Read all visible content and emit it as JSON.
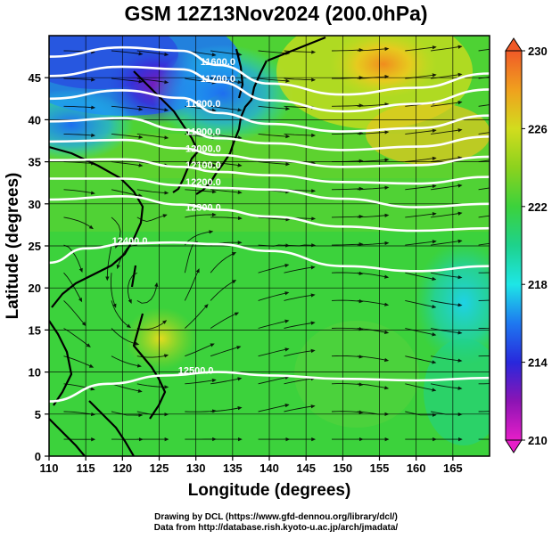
{
  "title": "GSM 12Z13Nov2024 (200.0hPa)",
  "chart_data": {
    "type": "heatmap",
    "xlabel": "Longitude (degrees)",
    "ylabel": "Latitude  (degrees)",
    "xlim": [
      110,
      170
    ],
    "ylim": [
      0,
      50
    ],
    "xticks": [
      110,
      115,
      120,
      125,
      130,
      135,
      140,
      145,
      150,
      155,
      160,
      165
    ],
    "yticks": [
      0,
      5,
      10,
      15,
      20,
      25,
      30,
      35,
      40,
      45
    ],
    "colorbar": {
      "min": 210,
      "max": 230,
      "ticks": [
        210,
        214,
        218,
        222,
        226,
        230
      ],
      "colors": [
        "#e61ec8",
        "#8c14b4",
        "#2828dc",
        "#1e78f0",
        "#1ee6e6",
        "#1ed28c",
        "#3cd23c",
        "#8cd21e",
        "#d2dc1e",
        "#f0a01e",
        "#f05a28"
      ]
    },
    "contours": [
      {
        "label": "11600.0",
        "label_lon": 133,
        "label_lat": 46.5,
        "points": [
          [
            110,
            47.5
          ],
          [
            120,
            48.6
          ],
          [
            128,
            48.2
          ],
          [
            133,
            46.5
          ],
          [
            140,
            44.3
          ],
          [
            150,
            43.0
          ],
          [
            160,
            43.8
          ],
          [
            170,
            45.5
          ]
        ]
      },
      {
        "label": "11700.0",
        "label_lon": 133,
        "label_lat": 44.5,
        "points": [
          [
            110,
            45.2
          ],
          [
            120,
            46.3
          ],
          [
            128,
            46.0
          ],
          [
            133,
            44.5
          ],
          [
            140,
            42.3
          ],
          [
            150,
            41.0
          ],
          [
            160,
            41.9
          ],
          [
            170,
            43.6
          ]
        ]
      },
      {
        "label": "11800.0",
        "label_lon": 131,
        "label_lat": 41.5,
        "points": [
          [
            110,
            42.5
          ],
          [
            120,
            43.5
          ],
          [
            128,
            42.6
          ],
          [
            133,
            40.8
          ],
          [
            140,
            39.5
          ],
          [
            150,
            38.6
          ],
          [
            160,
            39.0
          ],
          [
            170,
            40.5
          ]
        ]
      },
      {
        "label": "11900.0",
        "label_lon": 131,
        "label_lat": 38.2,
        "points": [
          [
            110,
            39.8
          ],
          [
            120,
            40.2
          ],
          [
            128,
            38.8
          ],
          [
            133,
            37.8
          ],
          [
            140,
            37.2
          ],
          [
            150,
            36.4
          ],
          [
            160,
            36.8
          ],
          [
            170,
            38.0
          ]
        ]
      },
      {
        "label": "12000.0",
        "label_lon": 131,
        "label_lat": 36.2,
        "points": [
          [
            110,
            37.4
          ],
          [
            120,
            37.6
          ],
          [
            128,
            36.6
          ],
          [
            133,
            35.8
          ],
          [
            140,
            35.2
          ],
          [
            150,
            34.4
          ],
          [
            160,
            34.6
          ],
          [
            170,
            35.6
          ]
        ]
      },
      {
        "label": "12100.0",
        "label_lon": 131,
        "label_lat": 34.2,
        "points": [
          [
            110,
            35.2
          ],
          [
            120,
            35.3
          ],
          [
            128,
            34.4
          ],
          [
            133,
            33.8
          ],
          [
            140,
            33.4
          ],
          [
            150,
            32.6
          ],
          [
            160,
            32.4
          ],
          [
            170,
            33.2
          ]
        ]
      },
      {
        "label": "12200.0",
        "label_lon": 131,
        "label_lat": 32.2,
        "points": [
          [
            110,
            33.0
          ],
          [
            120,
            33.0
          ],
          [
            128,
            32.2
          ],
          [
            133,
            31.9
          ],
          [
            140,
            31.7
          ],
          [
            150,
            30.6
          ],
          [
            160,
            29.6
          ],
          [
            170,
            30.0
          ]
        ]
      },
      {
        "label": "12300.0",
        "label_lon": 131,
        "label_lat": 29.2,
        "points": [
          [
            110,
            30.5
          ],
          [
            120,
            30.9
          ],
          [
            128,
            29.9
          ],
          [
            133,
            29.3
          ],
          [
            140,
            28.5
          ],
          [
            150,
            27.3
          ],
          [
            160,
            26.8
          ],
          [
            170,
            27.1
          ]
        ]
      },
      {
        "label": "12400.0",
        "label_lon": 121,
        "label_lat": 25.2,
        "points": [
          [
            110,
            23.0
          ],
          [
            115,
            24.7
          ],
          [
            121,
            25.3
          ],
          [
            127,
            25.4
          ],
          [
            133,
            25.2
          ],
          [
            140,
            24.4
          ],
          [
            150,
            22.6
          ],
          [
            160,
            22.0
          ],
          [
            170,
            22.6
          ]
        ]
      },
      {
        "label": "12500.0",
        "label_lon": 130,
        "label_lat": 9.8,
        "points": [
          [
            110,
            6.5
          ],
          [
            118,
            8.6
          ],
          [
            126,
            9.6
          ],
          [
            133,
            10.0
          ],
          [
            140,
            9.6
          ],
          [
            150,
            9.2
          ],
          [
            160,
            9.0
          ],
          [
            170,
            9.3
          ]
        ]
      }
    ]
  },
  "credits": {
    "line1": "Drawing by DCL (https://www.gfd-dennou.org/library/dcl/)",
    "line2": "Data from http://database.rish.kyoto-u.ac.jp/arch/jmadata/"
  },
  "colors": {
    "contour": "#ffffff",
    "coast": "#000000",
    "streamline": "#000000"
  }
}
